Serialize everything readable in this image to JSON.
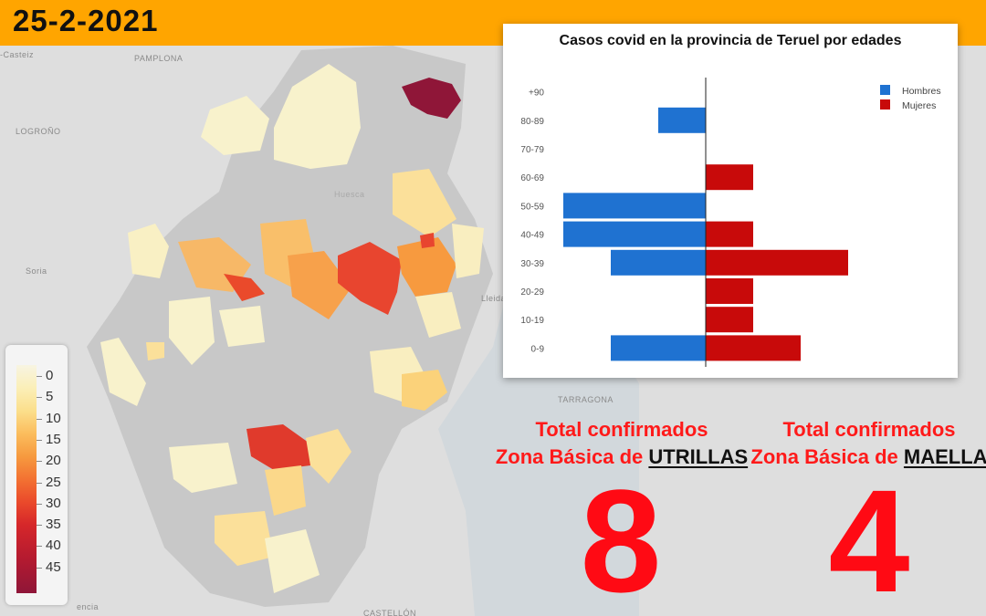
{
  "header": {
    "date": "25-2-2021",
    "color": "#ffa500"
  },
  "map": {
    "place_labels": [
      "PAMPLONA",
      "LOGROÑO",
      "Soria",
      "Lleida",
      "TARRAGONA",
      "-Casteiz",
      "Huesca",
      "encia",
      "CASTELLÓN"
    ],
    "legend": {
      "labels": [
        "0",
        "5",
        "10",
        "15",
        "20",
        "25",
        "30",
        "35",
        "40",
        "45"
      ]
    }
  },
  "chart_data": {
    "type": "bar",
    "orientation": "horizontal-population-pyramid",
    "title": "Casos covid en la provincia de Teruel por edades",
    "categories": [
      "+90",
      "80-89",
      "70-79",
      "60-69",
      "50-59",
      "40-49",
      "30-39",
      "20-29",
      "10-19",
      "0-9"
    ],
    "series": [
      {
        "name": "Hombres",
        "color": "#1f72d1",
        "values": [
          0,
          1,
          0,
          0,
          3,
          3,
          2,
          0,
          0,
          2
        ]
      },
      {
        "name": "Mujeres",
        "color": "#c80a0a",
        "values": [
          0,
          0,
          0,
          1,
          0,
          1,
          3,
          1,
          1,
          2
        ]
      }
    ],
    "xlim": [
      -3,
      3
    ],
    "grid": false,
    "legend_position": "top-right"
  },
  "totals": [
    {
      "line1": "Total confirmados",
      "prefix": "Zona Básica de ",
      "zone": "UTRILLAS",
      "value": "8"
    },
    {
      "line1": "Total confirmados",
      "prefix": "Zona Básica de ",
      "zone": "MAELLA",
      "value": "4"
    }
  ],
  "colors": {
    "total_text": "#ff1a1a",
    "big_number": "#ff0a14"
  }
}
